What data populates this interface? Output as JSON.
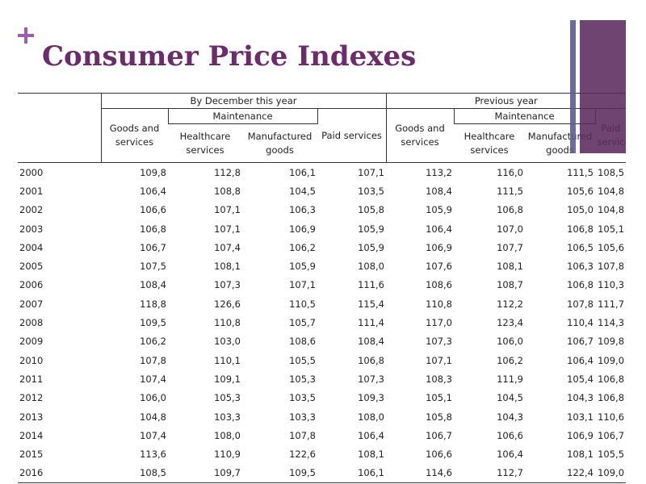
{
  "header": {
    "title": "Consumer Price Indexes"
  },
  "table": {
    "groups": [
      "By December this year",
      "Previous year"
    ],
    "subgroups": [
      "Maintenance",
      "Maintenance"
    ],
    "columns": [
      "Goods and services",
      "Healthcare services",
      "Manufactured goods",
      "Paid services",
      "Goods and services",
      "Healthcare services",
      "Manufactured goods",
      "Paid services"
    ],
    "rows": [
      [
        "2000",
        "109,8",
        "112,8",
        "106,1",
        "107,1",
        "113,2",
        "116,0",
        "111,5",
        "108,5"
      ],
      [
        "2001",
        "106,4",
        "108,8",
        "104,5",
        "103,5",
        "108,4",
        "111,5",
        "105,6",
        "104,8"
      ],
      [
        "2002",
        "106,6",
        "107,1",
        "106,3",
        "105,8",
        "105,9",
        "106,8",
        "105,0",
        "104,8"
      ],
      [
        "2003",
        "106,8",
        "107,1",
        "106,9",
        "105,9",
        "106,4",
        "107,0",
        "106,8",
        "105,1"
      ],
      [
        "2004",
        "106,7",
        "107,4",
        "106,2",
        "105,9",
        "106,9",
        "107,7",
        "106,5",
        "105,6"
      ],
      [
        "2005",
        "107,5",
        "108,1",
        "105,9",
        "108,0",
        "107,6",
        "108,1",
        "106,3",
        "107,8"
      ],
      [
        "2006",
        "108,4",
        "107,3",
        "107,1",
        "111,6",
        "108,6",
        "108,7",
        "106,8",
        "110,3"
      ],
      [
        "2007",
        "118,8",
        "126,6",
        "110,5",
        "115,4",
        "110,8",
        "112,2",
        "107,8",
        "111,7"
      ],
      [
        "2008",
        "109,5",
        "110,8",
        "105,7",
        "111,4",
        "117,0",
        "123,4",
        "110,4",
        "114,3"
      ],
      [
        "2009",
        "106,2",
        "103,0",
        "108,6",
        "108,4",
        "107,3",
        "106,0",
        "106,7",
        "109,8"
      ],
      [
        "2010",
        "107,8",
        "110,1",
        "105,5",
        "106,8",
        "107,1",
        "106,2",
        "106,4",
        "109,0"
      ],
      [
        "2011",
        "107,4",
        "109,1",
        "105,3",
        "107,3",
        "108,3",
        "111,9",
        "105,4",
        "106,8"
      ],
      [
        "2012",
        "106,0",
        "105,3",
        "103,5",
        "109,3",
        "105,1",
        "104,5",
        "104,3",
        "106,8"
      ],
      [
        "2013",
        "104,8",
        "103,3",
        "103,3",
        "108,0",
        "105,8",
        "104,3",
        "103,1",
        "110,6"
      ],
      [
        "2014",
        "107,4",
        "108,0",
        "107,8",
        "106,4",
        "106,7",
        "106,6",
        "106,9",
        "106,7"
      ],
      [
        "2015",
        "113,6",
        "110,9",
        "122,6",
        "108,1",
        "106,6",
        "106,4",
        "108,1",
        "105,5"
      ],
      [
        "2016",
        "108,5",
        "109,7",
        "109,5",
        "106,1",
        "114,6",
        "112,7",
        "122,4",
        "109,0"
      ]
    ]
  }
}
